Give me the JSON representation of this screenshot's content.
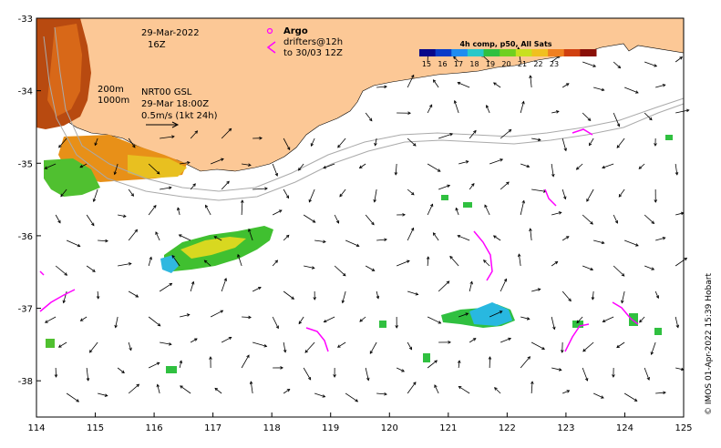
{
  "map": {
    "date_label": "29-Mar-2022",
    "time_label": "16Z",
    "contours": [
      "200m",
      "1000m"
    ],
    "current_source": "NRT00 GSL",
    "current_time": "29-Mar 18:00Z",
    "scale_label": "0.5m/s (1kt 24h)",
    "argo_label": "Argo",
    "drifters_line1": "drifters@12h",
    "drifters_line2": "to 30/03 12Z",
    "colorbar_title": "4h comp, p50, All Sats",
    "colorbar_ticks": [
      "15",
      "16",
      "17",
      "18",
      "19",
      "20",
      "21",
      "22",
      "23"
    ],
    "colorbar_colors": [
      "#08088a",
      "#0a3cc8",
      "#1e8cf0",
      "#28c8c8",
      "#30c040",
      "#70d020",
      "#c8e020",
      "#f0c020",
      "#f08020",
      "#d04010",
      "#8a1008"
    ],
    "x_ticks": [
      "114",
      "115",
      "116",
      "117",
      "118",
      "119",
      "120",
      "121",
      "122",
      "123",
      "124",
      "125"
    ],
    "y_ticks": [
      "-33",
      "-34",
      "-35",
      "-36",
      "-37",
      "-38"
    ],
    "x_range": [
      114,
      125
    ],
    "y_range": [
      -38.5,
      -33
    ],
    "credit": "© IMOS 01-Apr-2022 15:39 Hobart",
    "land_color": "#fcc896",
    "drifter_color": "#ff00ff"
  }
}
